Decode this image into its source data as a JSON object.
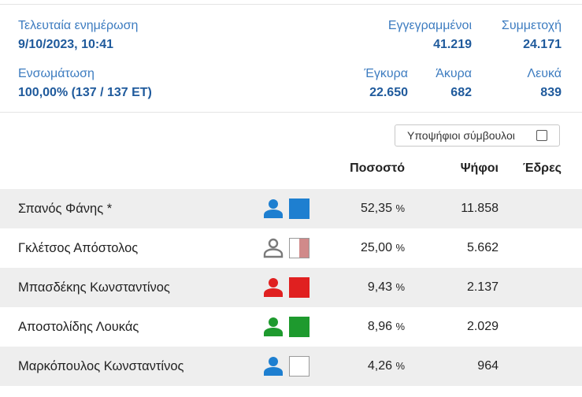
{
  "stats": {
    "last_update_label": "Τελευταία ενημέρωση",
    "last_update_value": "9/10/2023, 10:41",
    "registered_label": "Εγγεγραμμένοι",
    "registered_value": "41.219",
    "turnout_label": "Συμμετοχή",
    "turnout_value": "24.171",
    "integration_label": "Ενσωμάτωση",
    "integration_value": "100,00% (137 / 137 ΕΤ)",
    "valid_label": "Έγκυρα",
    "valid_value": "22.650",
    "invalid_label": "Άκυρα",
    "invalid_value": "682",
    "blank_label": "Λευκά",
    "blank_value": "839"
  },
  "toggle": {
    "label": "Υποψήφιοι σύμβουλοι",
    "checked": false
  },
  "table": {
    "headers": {
      "percent": "Ποσοστό",
      "votes": "Ψήφοι",
      "seats": "Έδρες"
    },
    "rows": [
      {
        "name": "Σπανός Φάνης *",
        "percent": "52,35",
        "unit": "%",
        "votes": "11.858",
        "seats": "",
        "icon_color": "#1e7fd0",
        "icon_style": "filled",
        "swatch_color": "#1e7fd0",
        "swatch_style": "solid"
      },
      {
        "name": "Γκλέτσος Απόστολος",
        "percent": "25,00",
        "unit": "%",
        "votes": "5.662",
        "seats": "",
        "icon_color": "#7a7a7a",
        "icon_style": "outline",
        "swatch_color": "#d08a8a",
        "swatch_style": "split"
      },
      {
        "name": "Μπασδέκης Κωνσταντίνος",
        "percent": "9,43",
        "unit": "%",
        "votes": "2.137",
        "seats": "",
        "icon_color": "#e02020",
        "icon_style": "filled",
        "swatch_color": "#e02020",
        "swatch_style": "solid"
      },
      {
        "name": "Αποστολίδης Λουκάς",
        "percent": "8,96",
        "unit": "%",
        "votes": "2.029",
        "seats": "",
        "icon_color": "#1e9a2e",
        "icon_style": "filled",
        "swatch_color": "#1e9a2e",
        "swatch_style": "solid"
      },
      {
        "name": "Μαρκόπουλος Κωνσταντίνος",
        "percent": "4,26",
        "unit": "%",
        "votes": "964",
        "seats": "",
        "icon_color": "#1e7fd0",
        "icon_style": "filled",
        "swatch_color": "#ffffff",
        "swatch_style": "empty"
      }
    ]
  }
}
